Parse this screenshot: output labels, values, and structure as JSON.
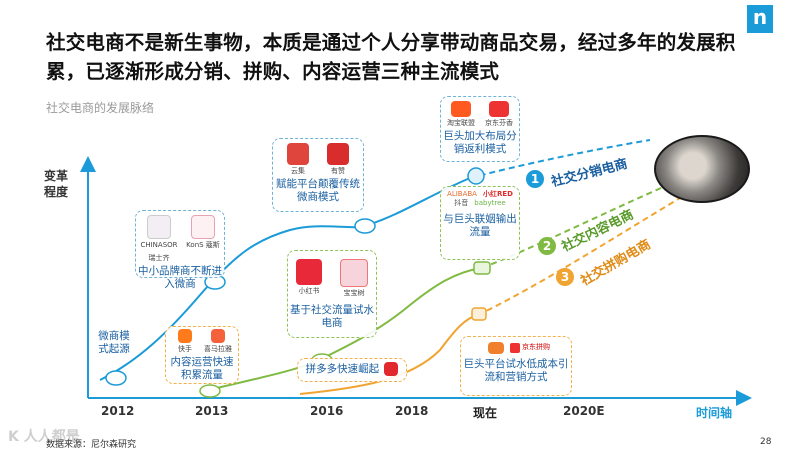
{
  "title": "社交电商不是新生事物，本质是通过个人分享带动商品交易，经过多年的发展积累，已逐渐形成分销、拼购、内容运营三种主流模式",
  "subtitle": "社交电商的发展脉络",
  "brand_letter": "n",
  "y_axis_label": "变革程度",
  "x_axis_label": "时间轴",
  "x_ticks": [
    "2012",
    "2013",
    "2016",
    "2018",
    "现在",
    "2020E"
  ],
  "channels": [
    {
      "num": "1",
      "label": "社交分销电商",
      "color": "#1b9bd7"
    },
    {
      "num": "2",
      "label": "社交内容电商",
      "color": "#7fba42"
    },
    {
      "num": "3",
      "label": "社交拼购电商",
      "color": "#f0a431"
    }
  ],
  "boxes": {
    "weishang": {
      "text": "微商模式起源"
    },
    "pinpai": {
      "text": "中小品牌商不断进入微商",
      "logos": [
        "CHINASOR 瑞士齐",
        "KonS 蔻斯"
      ]
    },
    "funeng": {
      "text": "赋能平台颠覆传统微商模式",
      "logos": [
        "云集",
        "有赞"
      ]
    },
    "jutou_fx": {
      "text": "巨头加大布局分销返利模式",
      "logos": [
        "淘宝联盟",
        "京东芬香"
      ]
    },
    "jutou_lm": {
      "text": "与巨头联姻输出流量",
      "logos": [
        "ALIBABA",
        "小红RED",
        "抖音",
        "babytree"
      ]
    },
    "neirong": {
      "text": "内容运营快速积累流量",
      "logos": [
        "快手",
        "喜马拉雅"
      ]
    },
    "xiaohongshu": {
      "text": "基于社交流量试水电商",
      "logos": [
        "小红书",
        "宝宝树"
      ]
    },
    "pinduoduo": {
      "text": "拼多多快速崛起"
    },
    "jutou_sy": {
      "text": "巨头平台试水低成本引流和营销方式",
      "logos": [
        "京东拼购"
      ]
    }
  },
  "footer": "数据来源：尼尔森研究",
  "page_number": "28",
  "watermark": "K 人人都是"
}
